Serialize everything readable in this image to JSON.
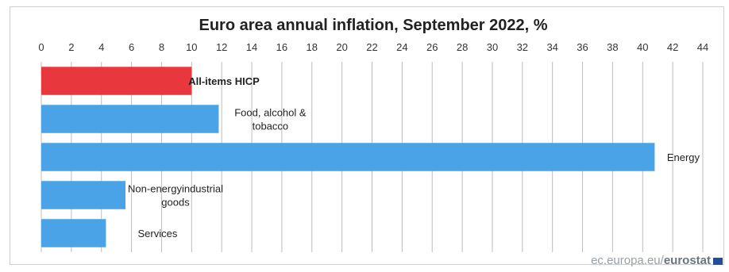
{
  "chart_data": {
    "type": "bar",
    "orientation": "horizontal",
    "title": "Euro area annual inflation, September 2022, %",
    "categories": [
      "All-items HICP",
      "Food, alcohol & tobacco",
      "Energy",
      "Non-energy industrial goods",
      "Services"
    ],
    "values": [
      10.0,
      11.8,
      40.8,
      5.6,
      4.3
    ],
    "colors": [
      "#e8383d",
      "#4aa3e6",
      "#4aa3e6",
      "#4aa3e6",
      "#4aa3e6"
    ],
    "xlim": [
      0,
      44
    ],
    "xticks": [
      0,
      2,
      4,
      6,
      8,
      10,
      12,
      14,
      16,
      18,
      20,
      22,
      24,
      26,
      28,
      30,
      32,
      34,
      36,
      38,
      40,
      42,
      44
    ],
    "xlabel": "",
    "ylabel": "",
    "grid": true,
    "legend": "none"
  },
  "source": {
    "prefix": "ec.europa.eu/",
    "brand": "eurostat"
  }
}
